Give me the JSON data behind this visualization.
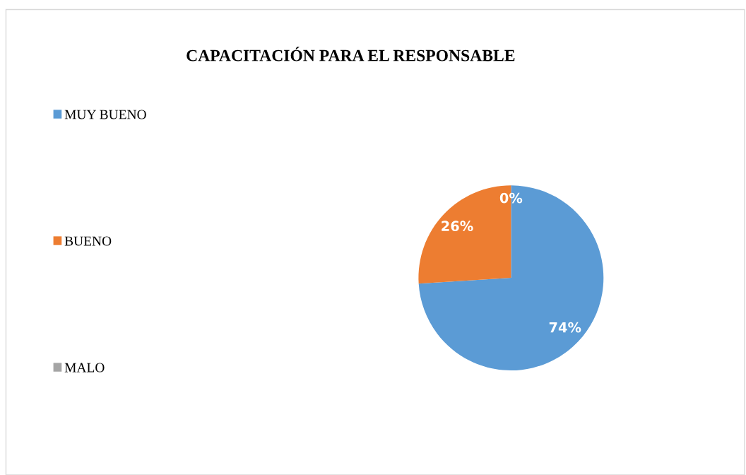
{
  "chart_data": {
    "type": "pie",
    "title": "CAPACITACIÓN PARA EL RESPONSABLE",
    "categories": [
      "MUY BUENO",
      "BUENO",
      "MALO"
    ],
    "values": [
      74,
      26,
      0
    ],
    "colors": [
      "#5b9bd5",
      "#ed7d31",
      "#a5a5a5"
    ],
    "value_labels": [
      "74%",
      "26%",
      "0%"
    ],
    "legend": "left"
  }
}
